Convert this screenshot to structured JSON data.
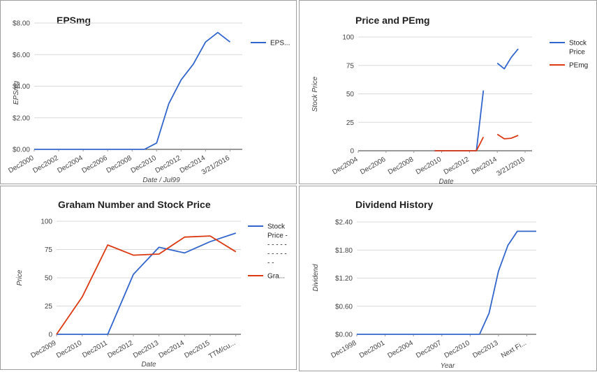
{
  "chart_data": [
    {
      "type": "line",
      "title": "EPSmg",
      "xlabel": "Date / Jul99",
      "ylabel": "EPSmg",
      "ylim": [
        0,
        8
      ],
      "yticks": [
        "$0.00",
        "$2.00",
        "$4.00",
        "$6.00",
        "$8.00"
      ],
      "ytick_values": [
        0,
        2,
        4,
        6,
        8
      ],
      "xtick_labels": [
        "Dec2000",
        "Dec2002",
        "Dec2004",
        "Dec2006",
        "Dec2008",
        "Dec2010",
        "Dec2012",
        "Dec2014",
        "3/21/2016"
      ],
      "xtick_positions": [
        0,
        2,
        4,
        6,
        8,
        10,
        12,
        14,
        16
      ],
      "x_range": [
        0,
        17
      ],
      "x": [
        0,
        1,
        2,
        3,
        4,
        5,
        6,
        7,
        8,
        9,
        10,
        11,
        12,
        13,
        14,
        15,
        16,
        17
      ],
      "series": [
        {
          "name": "EPS...",
          "color": "#3366cc",
          "values": [
            0,
            0,
            0,
            0,
            0,
            0,
            0,
            0,
            0,
            0,
            0.4,
            2.9,
            4.4,
            5.4,
            6.8,
            7.4,
            6.8,
            null
          ]
        }
      ],
      "grid": true,
      "legend": "right"
    },
    {
      "type": "line",
      "title": "Price and PEmg",
      "xlabel": "Date",
      "ylabel": "Stock Price",
      "ylim": [
        0,
        100
      ],
      "yticks": [
        "0",
        "25",
        "50",
        "75",
        "100"
      ],
      "ytick_values": [
        0,
        25,
        50,
        75,
        100
      ],
      "xtick_labels": [
        "Dec2004",
        "Dec2006",
        "Dec2008",
        "Dec2010",
        "Dec2012",
        "Dec2014",
        "3/21/2016"
      ],
      "xtick_positions": [
        0,
        2,
        4,
        6,
        8,
        10,
        12
      ],
      "x_range": [
        0,
        12.5
      ],
      "x": [
        5.5,
        6,
        6.5,
        7,
        7.5,
        8,
        8.5,
        9,
        9.5,
        10,
        10.5,
        11,
        11.5,
        12,
        12.5
      ],
      "series": [
        {
          "name": "Stock Price",
          "color": "#3366cc",
          "values": [
            0,
            0,
            0,
            0,
            0,
            0,
            0,
            53,
            null,
            77,
            72,
            82,
            89.5,
            null,
            null
          ]
        },
        {
          "name": "PEmg",
          "color": "#dc3912",
          "values": [
            0,
            0,
            0,
            0,
            0,
            0,
            0,
            12,
            null,
            14.5,
            10.5,
            11,
            13.5,
            null,
            null
          ]
        }
      ],
      "grid": true,
      "legend": "right"
    },
    {
      "type": "line",
      "title": "Graham Number and Stock Price",
      "xlabel": "Date",
      "ylabel": "Price",
      "ylim": [
        0,
        100
      ],
      "yticks": [
        "0",
        "25",
        "50",
        "75",
        "100"
      ],
      "ytick_values": [
        0,
        25,
        50,
        75,
        100
      ],
      "xtick_labels": [
        "Dec2009",
        "Dec2010",
        "Dec2011",
        "Dec2012",
        "Dec2013",
        "Dec2014",
        "Dec2015",
        "TTM/cu..."
      ],
      "xtick_positions": [
        0,
        1,
        2,
        3,
        4,
        5,
        6,
        7
      ],
      "x_range": [
        0,
        7.2
      ],
      "x": [
        0,
        1,
        2,
        3,
        4,
        5,
        6,
        7
      ],
      "series": [
        {
          "name": "Stock Price - - - - - - - - - - - - - - -",
          "color": "#3366cc",
          "values": [
            0,
            0,
            0,
            53,
            77,
            72,
            82,
            89.5
          ]
        },
        {
          "name": "Gra...",
          "color": "#dc3912",
          "values": [
            0,
            33,
            79,
            70,
            71,
            86,
            87,
            73
          ]
        }
      ],
      "grid": true,
      "legend": "right"
    },
    {
      "type": "line",
      "title": "Dividend History",
      "xlabel": "Year",
      "ylabel": "Dividend",
      "ylim": [
        0,
        2.4
      ],
      "yticks": [
        "$0.00",
        "$0.60",
        "$1.20",
        "$1.80",
        "$2.40"
      ],
      "ytick_values": [
        0,
        0.6,
        1.2,
        1.8,
        2.4
      ],
      "xtick_labels": [
        "Dec1998",
        "Dec2001",
        "Dec2004",
        "Dec2007",
        "Dec2010",
        "Dec2013",
        "Next Fi..."
      ],
      "xtick_positions": [
        0,
        3,
        6,
        9,
        12,
        15,
        18
      ],
      "x_range": [
        0,
        19
      ],
      "x": [
        0,
        1,
        2,
        3,
        4,
        5,
        6,
        7,
        8,
        9,
        10,
        11,
        12,
        13,
        14,
        15,
        16,
        17,
        18,
        19
      ],
      "series": [
        {
          "name": "Dividend",
          "color": "#3366cc",
          "values": [
            0,
            0,
            0,
            0,
            0,
            0,
            0,
            0,
            0,
            0,
            0,
            0,
            0,
            0,
            0.45,
            1.35,
            1.9,
            2.2,
            2.2,
            2.2
          ]
        }
      ],
      "grid": true,
      "legend": "none"
    }
  ]
}
